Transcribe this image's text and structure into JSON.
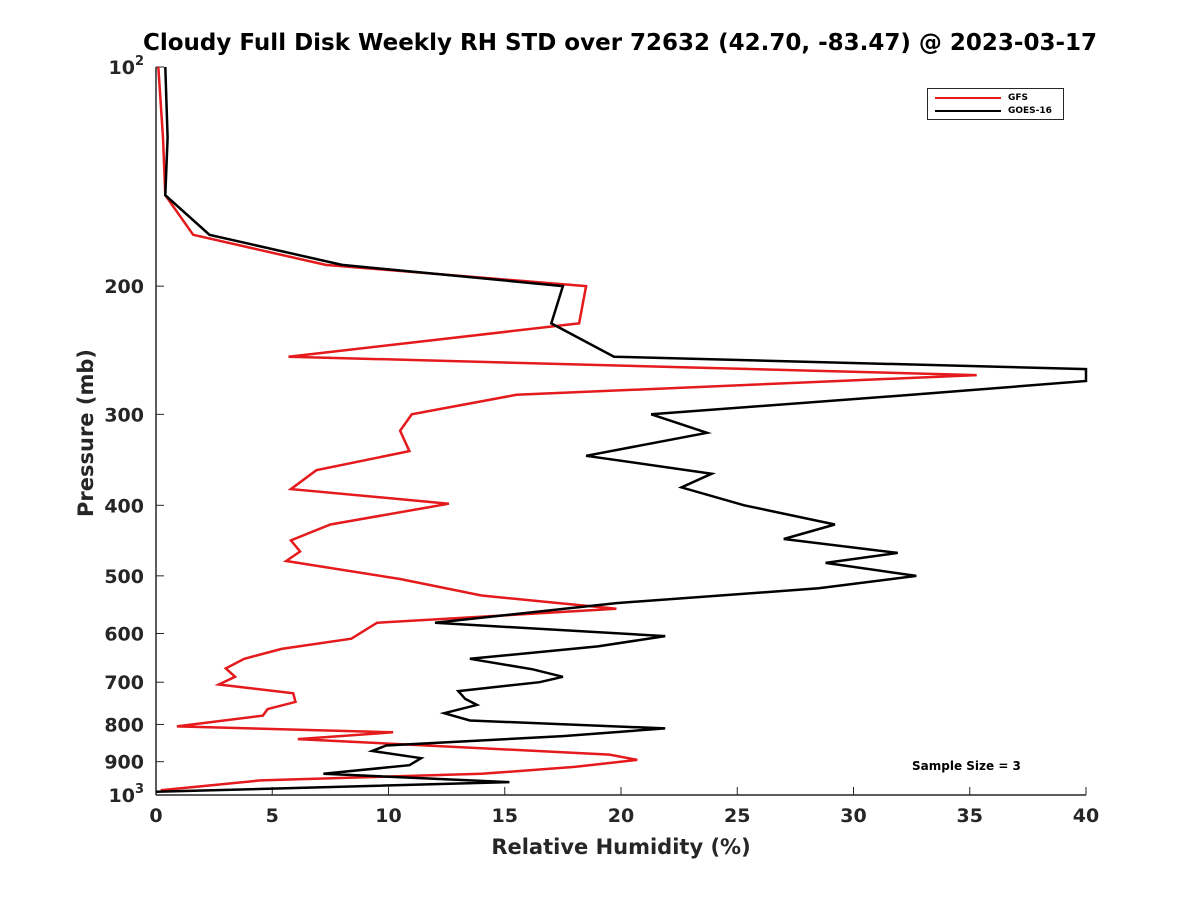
{
  "chart_data": {
    "type": "line",
    "title": "Cloudy Full Disk Weekly RH STD over 72632 (42.70, -83.47) @ 2023-03-17",
    "xlabel": "Relative Humidity (%)",
    "ylabel": "Pressure (mb)",
    "xlim": [
      0,
      40
    ],
    "ylim": [
      100,
      1000
    ],
    "y_scale": "log",
    "y_reversed": true,
    "x_ticks": [
      "0",
      "5",
      "10",
      "15",
      "20",
      "25",
      "30",
      "35",
      "40"
    ],
    "y_ticks": [
      {
        "value": 100,
        "base": "10",
        "exp": "2"
      },
      {
        "value": 200,
        "label": "200"
      },
      {
        "value": 300,
        "label": "300"
      },
      {
        "value": 400,
        "label": "400"
      },
      {
        "value": 500,
        "label": "500"
      },
      {
        "value": 600,
        "label": "600"
      },
      {
        "value": 700,
        "label": "700"
      },
      {
        "value": 800,
        "label": "800"
      },
      {
        "value": 900,
        "label": "900"
      },
      {
        "value": 1000,
        "base": "10",
        "exp": "3"
      }
    ],
    "grid": false,
    "legend_position": "top-right",
    "annotation": "Sample Size = 3",
    "series": [
      {
        "name": "GFS",
        "color": "#e41a1c",
        "points": [
          [
            0.1,
            100
          ],
          [
            0.3,
            125
          ],
          [
            0.4,
            150
          ],
          [
            1.6,
            170
          ],
          [
            7.3,
            187
          ],
          [
            18.5,
            200
          ],
          [
            18.2,
            225
          ],
          [
            5.7,
            250
          ],
          [
            35.3,
            265
          ],
          [
            15.5,
            282
          ],
          [
            11.0,
            300
          ],
          [
            10.5,
            316
          ],
          [
            10.9,
            337
          ],
          [
            6.9,
            358
          ],
          [
            5.8,
            380
          ],
          [
            12.6,
            398
          ],
          [
            7.5,
            425
          ],
          [
            5.8,
            447
          ],
          [
            6.2,
            463
          ],
          [
            5.6,
            477
          ],
          [
            10.5,
            505
          ],
          [
            14.0,
            532
          ],
          [
            19.8,
            555
          ],
          [
            9.5,
            580
          ],
          [
            8.4,
            610
          ],
          [
            5.4,
            630
          ],
          [
            3.8,
            650
          ],
          [
            3.0,
            670
          ],
          [
            3.4,
            688
          ],
          [
            2.7,
            705
          ],
          [
            5.9,
            725
          ],
          [
            6.0,
            745
          ],
          [
            4.8,
            762
          ],
          [
            4.6,
            778
          ],
          [
            0.9,
            805
          ],
          [
            10.2,
            820
          ],
          [
            6.1,
            838
          ],
          [
            19.5,
            880
          ],
          [
            20.7,
            895
          ],
          [
            18.0,
            915
          ],
          [
            14.0,
            935
          ],
          [
            4.5,
            955
          ],
          [
            0.2,
            985
          ]
        ]
      },
      {
        "name": "GOES-16",
        "color": "#000000",
        "points": [
          [
            0.4,
            100
          ],
          [
            0.5,
            125
          ],
          [
            0.4,
            150
          ],
          [
            2.3,
            170
          ],
          [
            8.0,
            187
          ],
          [
            17.5,
            200
          ],
          [
            17.0,
            225
          ],
          [
            19.7,
            250
          ],
          [
            40.0,
            260
          ],
          [
            40.0,
            270
          ],
          [
            32.5,
            282
          ],
          [
            21.3,
            300
          ],
          [
            23.7,
            318
          ],
          [
            18.5,
            342
          ],
          [
            23.9,
            362
          ],
          [
            22.6,
            378
          ],
          [
            25.3,
            400
          ],
          [
            29.2,
            425
          ],
          [
            27.0,
            445
          ],
          [
            31.9,
            465
          ],
          [
            28.8,
            480
          ],
          [
            32.7,
            500
          ],
          [
            28.5,
            520
          ],
          [
            19.8,
            545
          ],
          [
            12.0,
            580
          ],
          [
            21.9,
            605
          ],
          [
            19.0,
            625
          ],
          [
            13.5,
            650
          ],
          [
            16.2,
            672
          ],
          [
            17.5,
            688
          ],
          [
            16.5,
            700
          ],
          [
            13.0,
            720
          ],
          [
            13.3,
            738
          ],
          [
            13.8,
            752
          ],
          [
            12.4,
            772
          ],
          [
            13.5,
            790
          ],
          [
            21.9,
            810
          ],
          [
            17.5,
            830
          ],
          [
            9.9,
            855
          ],
          [
            9.3,
            870
          ],
          [
            11.4,
            890
          ],
          [
            10.9,
            910
          ],
          [
            7.2,
            935
          ],
          [
            15.2,
            960
          ],
          [
            0.0,
            990
          ]
        ]
      }
    ]
  }
}
